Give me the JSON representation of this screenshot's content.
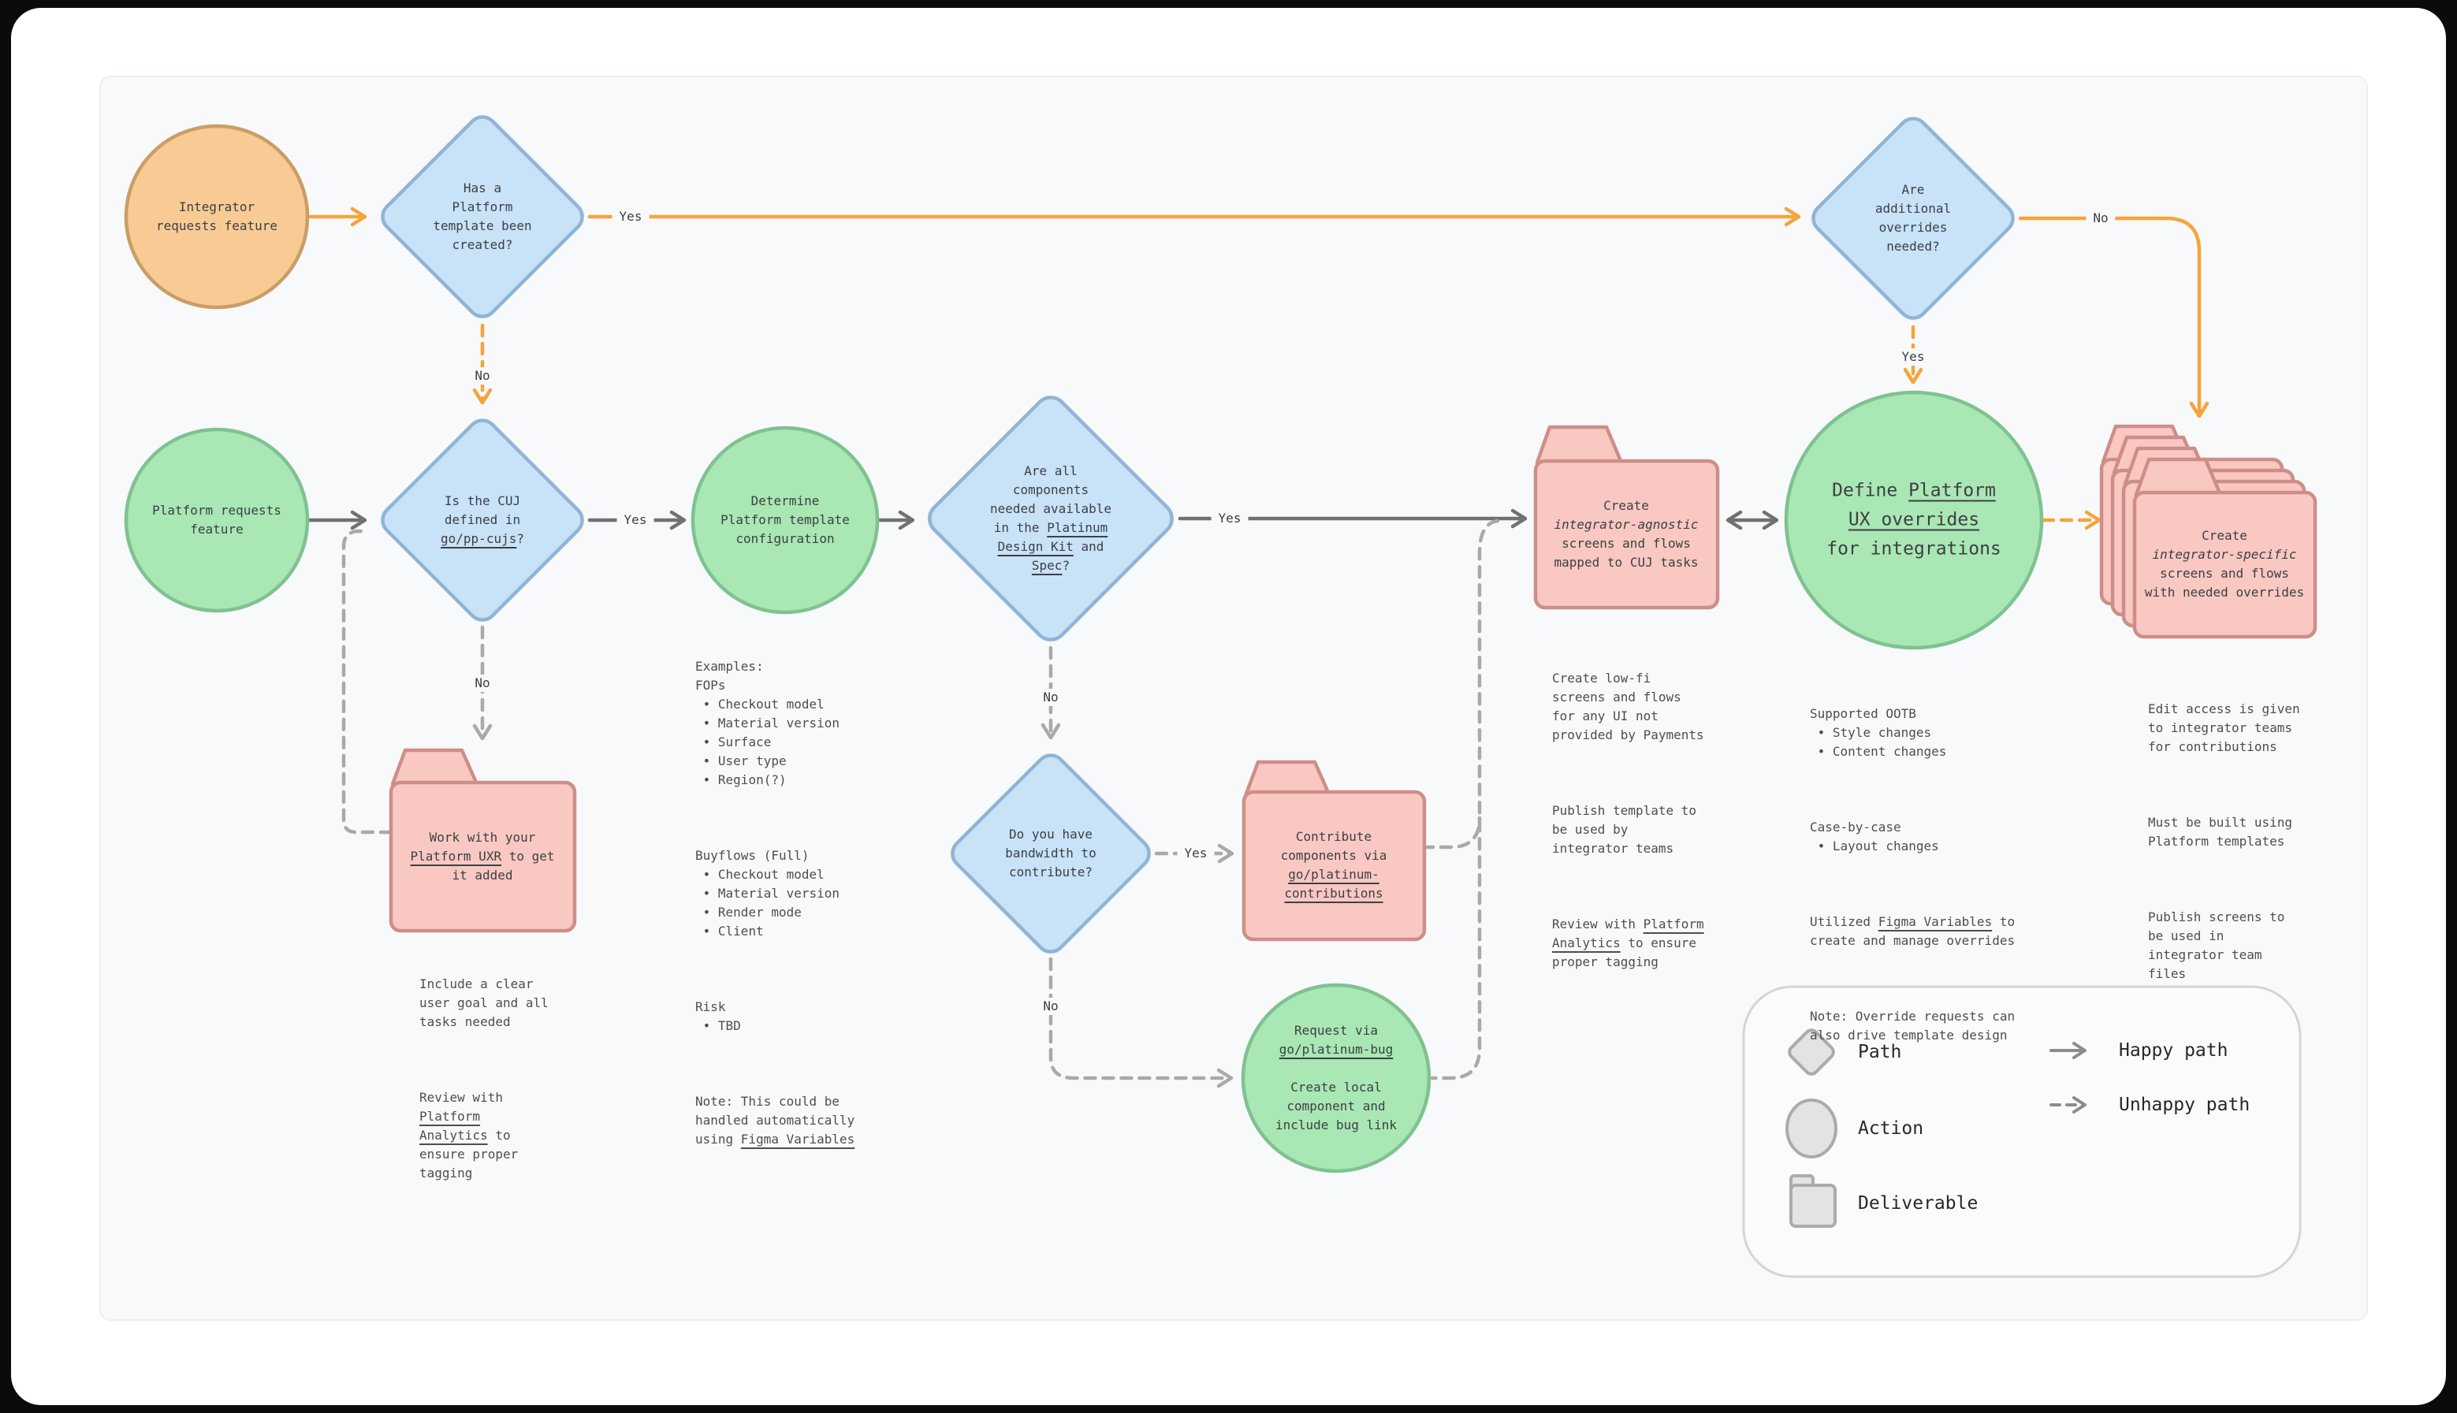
{
  "nodes": {
    "integrator": [
      {
        "t": "Integrator\nrequests feature"
      }
    ],
    "template_decision": [
      {
        "t": "Has a\nPlatform\ntemplate been\ncreated?"
      }
    ],
    "overrides_decision": [
      {
        "t": "Are\nadditional\noverrides\nneeded?"
      }
    ],
    "platform": [
      {
        "t": "Platform requests\nfeature"
      }
    ],
    "cuj_decision": [
      {
        "t": "Is the CUJ\ndefined in\n"
      },
      {
        "t": "go/pp-cujs",
        "u": true
      },
      {
        "t": "?"
      }
    ],
    "determine": [
      {
        "t": "Determine\nPlatform template\nconfiguration"
      }
    ],
    "components_decision": [
      {
        "t": "Are all\ncomponents\nneeded available\nin the "
      },
      {
        "t": "Platinum\nDesign Kit",
        "u": true
      },
      {
        "t": " and\n"
      },
      {
        "t": "Spec",
        "u": true
      },
      {
        "t": "?"
      }
    ],
    "agnostic_folder": [
      {
        "t": "Create\n"
      },
      {
        "t": "integrator-agnostic",
        "i": true
      },
      {
        "t": "\nscreens and flows\nmapped to CUJ tasks"
      }
    ],
    "define_overrides": [
      {
        "t": "Define "
      },
      {
        "t": "Platform\nUX overrides",
        "u": true
      },
      {
        "t": "\nfor integrations"
      }
    ],
    "specific_folder": [
      {
        "t": "Create\n"
      },
      {
        "t": "integrator-specific",
        "i": true
      },
      {
        "t": "\nscreens and flows\nwith needed overrides"
      }
    ],
    "work_folder": [
      {
        "t": "Work with your\n"
      },
      {
        "t": "Platform UXR",
        "u": true
      },
      {
        "t": " to get\nit added"
      }
    ],
    "bandwidth_decision": [
      {
        "t": "Do you have\nbandwidth to\ncontribute?"
      }
    ],
    "contribute_folder": [
      {
        "t": "Contribute\ncomponents via\n"
      },
      {
        "t": "go/platinum-\ncontributions",
        "u": true
      }
    ],
    "request_bug": [
      {
        "t": "Request via\n"
      },
      {
        "t": "go/platinum-bug",
        "u": true
      },
      {
        "t": "\n\nCreate local\ncomponent and\ninclude bug link"
      }
    ]
  },
  "edge_labels": {
    "template_yes": "Yes",
    "template_no": "No",
    "overrides_no": "No",
    "overrides_yes": "Yes",
    "cuj_yes": "Yes",
    "cuj_no": "No",
    "components_yes": "Yes",
    "components_no": "No",
    "bandwidth_yes": "Yes",
    "bandwidth_no": "No"
  },
  "annotations": {
    "examples": [
      [
        {
          "t": "Examples:\nFOPs\n • Checkout model\n • Material version\n • Surface\n • User type\n • Region(?)"
        }
      ],
      [
        {
          "t": "Buyflows (Full)\n • Checkout model\n • Material version\n • Render mode\n • Client"
        }
      ],
      [
        {
          "t": "Risk\n • TBD"
        }
      ],
      [
        {
          "t": "Note: This could be\nhandled automatically\nusing "
        },
        {
          "t": "Figma Variables",
          "u": true
        }
      ]
    ],
    "work_note": [
      [
        {
          "t": "Include a clear\nuser goal and all\ntasks needed"
        }
      ],
      [
        {
          "t": "Review with\n"
        },
        {
          "t": "Platform\nAnalytics",
          "u": true
        },
        {
          "t": " to\nensure proper\ntagging"
        }
      ]
    ],
    "agnostic_note": [
      [
        {
          "t": "Create low-fi\nscreens and flows\nfor any UI not\nprovided by Payments"
        }
      ],
      [
        {
          "t": "Publish template to\nbe used by\nintegrator teams"
        }
      ],
      [
        {
          "t": "Review with "
        },
        {
          "t": "Platform\nAnalytics",
          "u": true
        },
        {
          "t": " to ensure\nproper tagging"
        }
      ]
    ],
    "define_note": [
      [
        {
          "t": "Supported OOTB\n • Style changes\n • Content changes"
        }
      ],
      [
        {
          "t": "Case-by-case\n • Layout changes"
        }
      ],
      [
        {
          "t": "Utilized "
        },
        {
          "t": "Figma Variables",
          "u": true
        },
        {
          "t": " to\ncreate and manage overrides"
        }
      ],
      [
        {
          "t": "Note: Override requests can\nalso drive template design"
        }
      ]
    ],
    "specific_note": [
      [
        {
          "t": "Edit access is given\nto integrator teams\nfor contributions"
        }
      ],
      [
        {
          "t": "Must be built using\nPlatform templates"
        }
      ],
      [
        {
          "t": "Publish screens to\nbe used in\nintegrator team\nfiles"
        }
      ]
    ]
  },
  "legend": {
    "shape_items": [
      {
        "label": "Path"
      },
      {
        "label": "Action"
      },
      {
        "label": "Deliverable"
      }
    ],
    "edge_items": [
      {
        "label": "Happy path"
      },
      {
        "label": "Unhappy path"
      }
    ]
  },
  "colors": {
    "canvas_bg": "#F8F9FA",
    "happy_path_top": "#F5A43B",
    "happy_path": "#6F7275",
    "unhappy_path": "#A7AAAD",
    "path_fill": "#C8E2F8",
    "path_stroke": "#8FB5D6",
    "action_fill": "#A9E7B4",
    "action_stroke": "#7FC291",
    "start_fill": "#F8CB95",
    "start_stroke": "#C99E66",
    "deliverable_fill": "#F9C8C2",
    "deliverable_stroke": "#CE8E88"
  }
}
